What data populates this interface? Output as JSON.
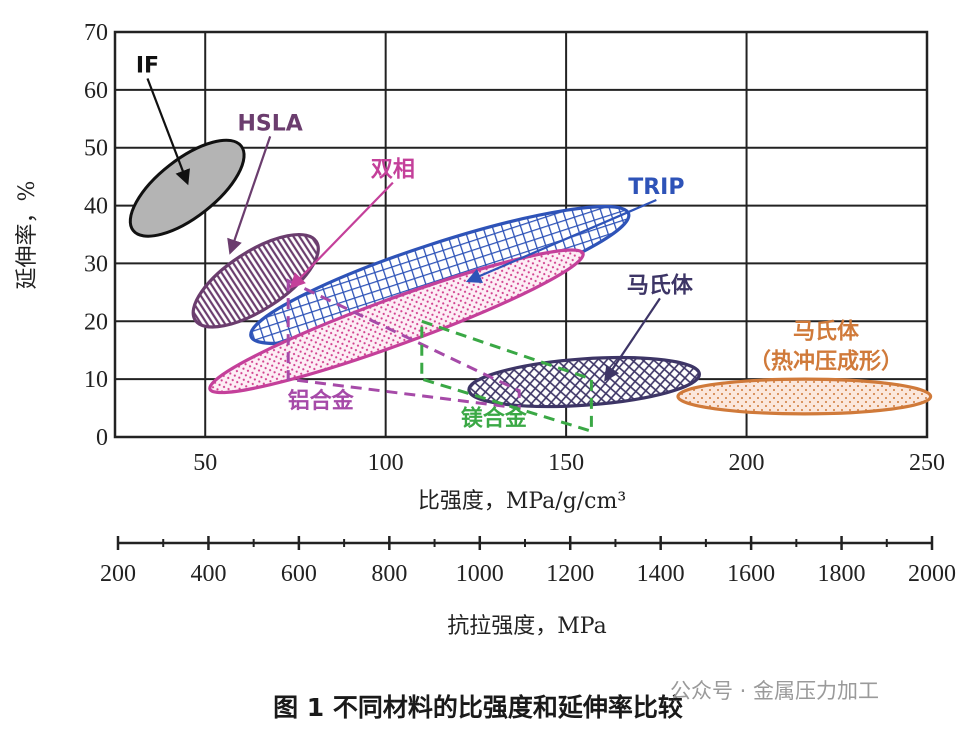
{
  "caption": "图 1 不同材料的比强度和延伸率比较",
  "watermark": "公众号 · 金属压力加工",
  "chart_data": {
    "type": "scatter",
    "xlabel": "比强度，MPa/g/cm³",
    "ylabel": "延伸率，%",
    "xlim": [
      25,
      250
    ],
    "ylim": [
      0,
      70
    ],
    "x_ticks": [
      "50",
      "100",
      "150",
      "200",
      "250"
    ],
    "y_ticks": [
      "0",
      "10",
      "20",
      "30",
      "40",
      "50",
      "60",
      "70"
    ],
    "grid": true,
    "secondary_x_axis": {
      "label": "抗拉强度，MPa",
      "range": [
        200,
        2000
      ],
      "ticks": [
        "200",
        "400",
        "600",
        "800",
        "1000",
        "1200",
        "1400",
        "1600",
        "1800",
        "2000"
      ]
    },
    "regions": [
      {
        "name": "IF",
        "shape": "ellipse",
        "cx": 45,
        "cy": 43,
        "rx": 19,
        "ry": 5,
        "angle": -38,
        "color": "#b4b4b4",
        "pattern": "solid",
        "label_at": [
          34,
          63
        ],
        "arrow_to": [
          45,
          44
        ]
      },
      {
        "name": "HSLA",
        "shape": "ellipse",
        "cx": 64,
        "cy": 27,
        "rx": 20,
        "ry": 5,
        "angle": -33,
        "color": "#6b3d6e",
        "pattern": "vertical-lines",
        "label_at": [
          68,
          53
        ],
        "arrow_to": [
          57,
          32
        ]
      },
      {
        "name": "TRIP",
        "shape": "ellipse",
        "cx": 115,
        "cy": 28,
        "rx": 55,
        "ry": 5.5,
        "angle": -18,
        "color": "#2e53b8",
        "pattern": "grid",
        "label_at": [
          175,
          42
        ],
        "arrow_to": [
          123,
          27
        ]
      },
      {
        "name": "双相",
        "shape": "ellipse",
        "cx": 103,
        "cy": 20,
        "rx": 55,
        "ry": 4,
        "angle": -20,
        "color": "#c4409a",
        "pattern": "dots",
        "label_at": [
          102,
          45
        ],
        "arrow_to": [
          74,
          26
        ]
      },
      {
        "name": "马氏体",
        "shape": "ellipse",
        "cx": 155,
        "cy": 9.5,
        "rx": 32,
        "ry": 4,
        "angle": -4,
        "color": "#3d3566",
        "pattern": "crosshatch",
        "label_at": [
          176,
          25
        ],
        "arrow_to": [
          161,
          10
        ]
      },
      {
        "name": "马氏体（热冲压成形）",
        "shape": "ellipse",
        "cx": 216,
        "cy": 7,
        "rx": 35,
        "ry": 3,
        "angle": 0,
        "color": "#d07a3a",
        "pattern": "dots",
        "label_at": [
          222,
          17
        ],
        "arrow_to": null
      },
      {
        "name": "铝合金",
        "shape": "polygon",
        "points": [
          [
            73,
            27
          ],
          [
            137,
            8
          ],
          [
            137,
            5
          ],
          [
            73,
            10
          ]
        ],
        "color": "#a64aa8",
        "pattern": "dashed-outline",
        "label_at": [
          82,
          5
        ],
        "arrow_to": null
      },
      {
        "name": "镁合金",
        "shape": "polygon",
        "points": [
          [
            110,
            20
          ],
          [
            157,
            10
          ],
          [
            157,
            1
          ],
          [
            110,
            10
          ]
        ],
        "color": "#3aa845",
        "pattern": "dashed-outline",
        "label_at": [
          130,
          2
        ],
        "arrow_to": null
      }
    ]
  }
}
